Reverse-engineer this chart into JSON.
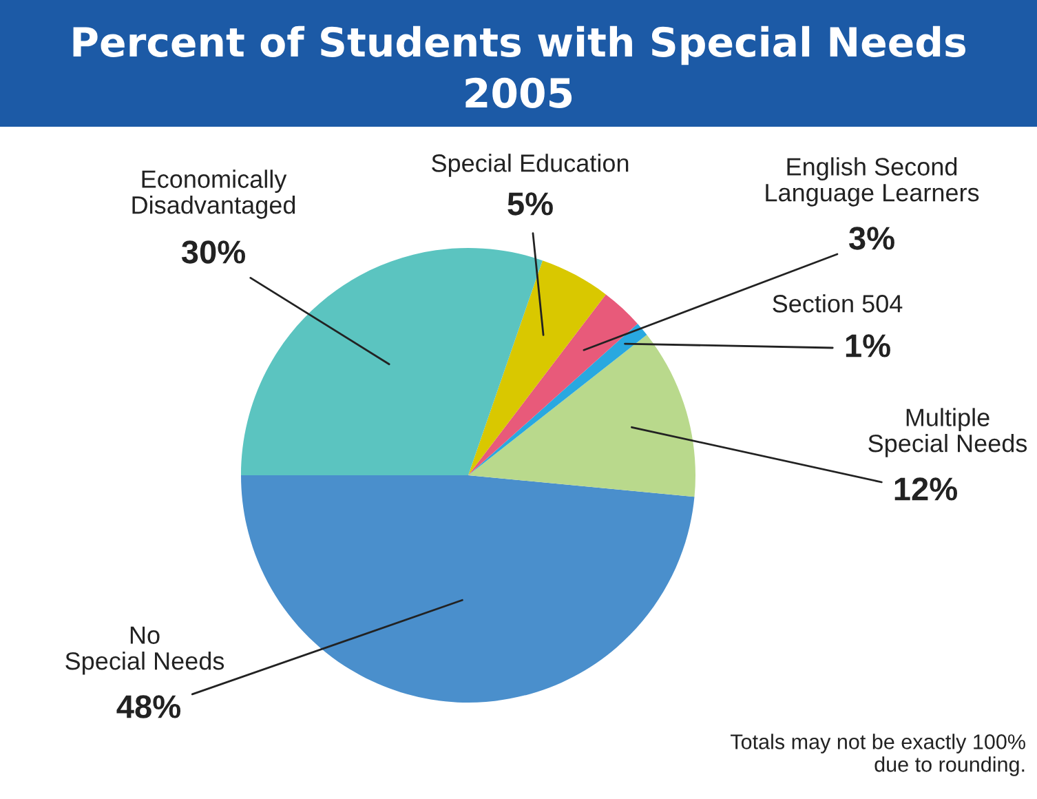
{
  "chart_data": {
    "type": "pie",
    "title": "Percent of Students with Special Needs",
    "subtitle": "2005",
    "categories": [
      "No\nSpecial Needs",
      "Multiple\nSpecial Needs",
      "Section 504",
      "English Second\nLanguage Learners",
      "Special Education",
      "Economically\nDisadvantaged"
    ],
    "values": [
      48,
      12,
      1,
      3,
      5,
      30
    ],
    "value_labels": [
      "48%",
      "12%",
      "1%",
      "3%",
      "5%",
      "30%"
    ],
    "colors": [
      "#4a8fcc",
      "#b9d98c",
      "#29a8e0",
      "#e85a7a",
      "#d9c800",
      "#5bc4c0"
    ],
    "annotations": [
      "Totals may not be exactly 100%\ndue to rounding."
    ],
    "legend": false
  }
}
